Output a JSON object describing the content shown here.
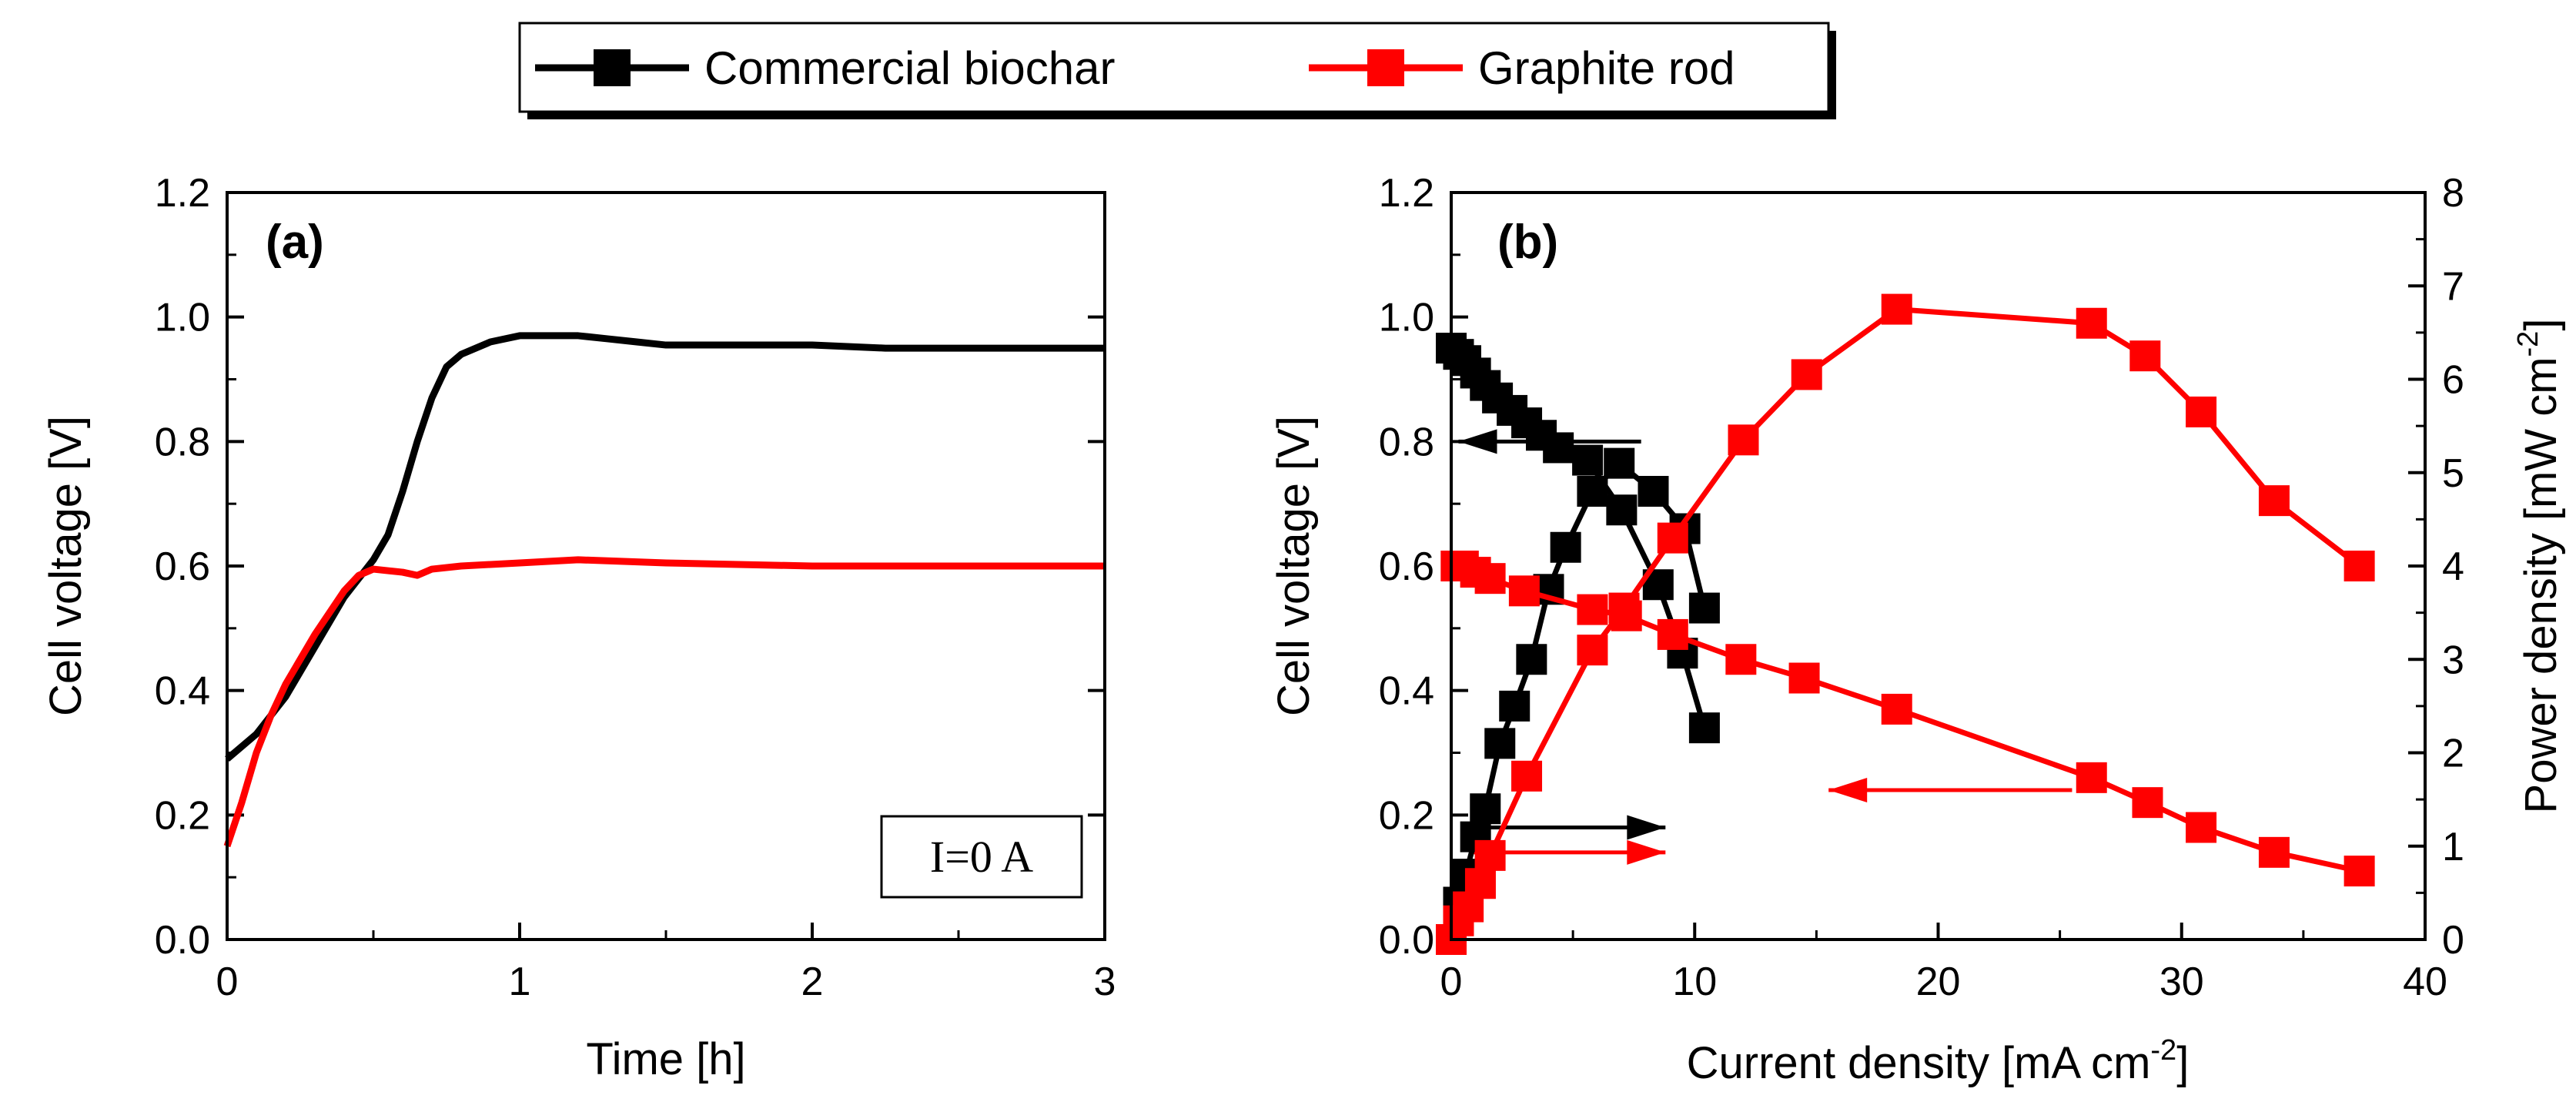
{
  "legend": {
    "placement": "top-center",
    "entries": [
      {
        "label": "Commercial biochar",
        "color": "#000000"
      },
      {
        "label": "Graphite rod",
        "color": "#ff0000"
      }
    ]
  },
  "chart_data": [
    {
      "type": "line",
      "panel_label": "(a)",
      "xlabel": "Time [h]",
      "ylabel": "Cell voltage [V]",
      "xlim": [
        0,
        3
      ],
      "ylim": [
        0,
        1.2
      ],
      "xticks": [
        "0",
        "1",
        "2",
        "3"
      ],
      "yticks": [
        "0.0",
        "0.2",
        "0.4",
        "0.6",
        "0.8",
        "1.0",
        "1.2"
      ],
      "annotation": "I=0 A",
      "series": [
        {
          "name": "Commercial biochar",
          "color": "#000000",
          "x": [
            0,
            0.1,
            0.2,
            0.3,
            0.4,
            0.5,
            0.55,
            0.6,
            0.65,
            0.7,
            0.75,
            0.8,
            0.9,
            1.0,
            1.1,
            1.2,
            1.3,
            1.4,
            1.5,
            1.75,
            2.0,
            2.25,
            2.5,
            2.75,
            3.0
          ],
          "y": [
            0.29,
            0.33,
            0.39,
            0.47,
            0.55,
            0.61,
            0.65,
            0.72,
            0.8,
            0.87,
            0.92,
            0.94,
            0.96,
            0.97,
            0.97,
            0.97,
            0.965,
            0.96,
            0.955,
            0.955,
            0.955,
            0.95,
            0.95,
            0.95,
            0.95
          ]
        },
        {
          "name": "Graphite rod",
          "color": "#ff0000",
          "x": [
            0,
            0.05,
            0.1,
            0.15,
            0.2,
            0.3,
            0.4,
            0.45,
            0.5,
            0.6,
            0.65,
            0.7,
            0.8,
            1.0,
            1.2,
            1.5,
            2.0,
            2.5,
            3.0
          ],
          "y": [
            0.15,
            0.22,
            0.3,
            0.36,
            0.41,
            0.49,
            0.56,
            0.585,
            0.595,
            0.59,
            0.585,
            0.595,
            0.6,
            0.605,
            0.61,
            0.605,
            0.6,
            0.6,
            0.6
          ]
        }
      ]
    },
    {
      "type": "line",
      "panel_label": "(b)",
      "xlabel": "Current density [mA cm",
      "xlabel_sup": "-2",
      "xlabel_end": "]",
      "ylabel": "Cell voltage [V]",
      "y2label": "Power density [mW cm",
      "y2label_sup": "-2",
      "y2label_end": "]",
      "xlim": [
        0,
        40
      ],
      "ylim": [
        0,
        1.2
      ],
      "y2lim": [
        0,
        8
      ],
      "xticks": [
        "0",
        "10",
        "20",
        "30",
        "40"
      ],
      "yticks": [
        "0.0",
        "0.2",
        "0.4",
        "0.6",
        "0.8",
        "1.0",
        "1.2"
      ],
      "y2ticks": [
        "0",
        "1",
        "2",
        "3",
        "4",
        "5",
        "6",
        "7",
        "8"
      ],
      "series": [
        {
          "name": "Commercial biochar",
          "quantity": "voltage",
          "color": "#000000",
          "x": [
            0,
            0.3,
            0.6,
            1.0,
            1.4,
            1.9,
            2.5,
            3.1,
            3.7,
            4.4,
            5.6,
            7.0,
            8.5,
            9.5,
            10.4
          ],
          "y": [
            0.95,
            0.94,
            0.93,
            0.91,
            0.89,
            0.87,
            0.85,
            0.83,
            0.81,
            0.79,
            0.77,
            0.69,
            0.57,
            0.46,
            0.34
          ]
        },
        {
          "name": "Commercial biochar",
          "quantity": "power",
          "color": "#000000",
          "x": [
            0,
            0.3,
            0.6,
            1.0,
            1.4,
            2.0,
            2.6,
            3.3,
            4.0,
            4.7,
            5.8,
            6.9,
            8.3,
            9.6,
            10.4
          ],
          "y": [
            0,
            0.4,
            0.7,
            1.1,
            1.4,
            2.1,
            2.5,
            3.0,
            3.75,
            4.2,
            4.8,
            5.1,
            4.8,
            4.4,
            3.55
          ]
        },
        {
          "name": "Graphite rod",
          "quantity": "voltage",
          "color": "#ff0000",
          "x": [
            0.2,
            0.5,
            1.0,
            1.6,
            3.0,
            5.8,
            7.2,
            9.1,
            11.9,
            14.5,
            18.3,
            26.3,
            28.6,
            30.8,
            33.8,
            37.3
          ],
          "y": [
            0.6,
            0.6,
            0.59,
            0.58,
            0.56,
            0.53,
            0.52,
            0.49,
            0.45,
            0.42,
            0.37,
            0.26,
            0.22,
            0.18,
            0.14,
            0.11
          ]
        },
        {
          "name": "Graphite rod",
          "quantity": "power",
          "color": "#ff0000",
          "x": [
            0,
            0.3,
            0.7,
            1.2,
            1.6,
            3.1,
            5.8,
            7.1,
            9.1,
            12.0,
            14.6,
            18.3,
            26.3,
            28.5,
            30.8,
            33.8,
            37.3
          ],
          "y": [
            0,
            0.2,
            0.35,
            0.6,
            0.9,
            1.75,
            3.1,
            3.55,
            4.3,
            5.35,
            6.05,
            6.75,
            6.6,
            6.25,
            5.65,
            4.7,
            4.0
          ]
        }
      ],
      "indicator_arrows": [
        {
          "color": "#000000",
          "direction": "left",
          "x_from": 7.8,
          "x_to": 0.3,
          "y": 0.8,
          "axis": "left"
        },
        {
          "color": "#000000",
          "direction": "right",
          "x_from": 0.8,
          "x_to": 8.8,
          "y": 0.18,
          "axis": "left"
        },
        {
          "color": "#ff0000",
          "direction": "right",
          "x_from": 0.8,
          "x_to": 8.8,
          "y": 0.14,
          "axis": "left"
        },
        {
          "color": "#ff0000",
          "direction": "left",
          "x_from": 25.5,
          "x_to": 15.5,
          "y": 0.24,
          "axis": "left"
        }
      ]
    }
  ]
}
